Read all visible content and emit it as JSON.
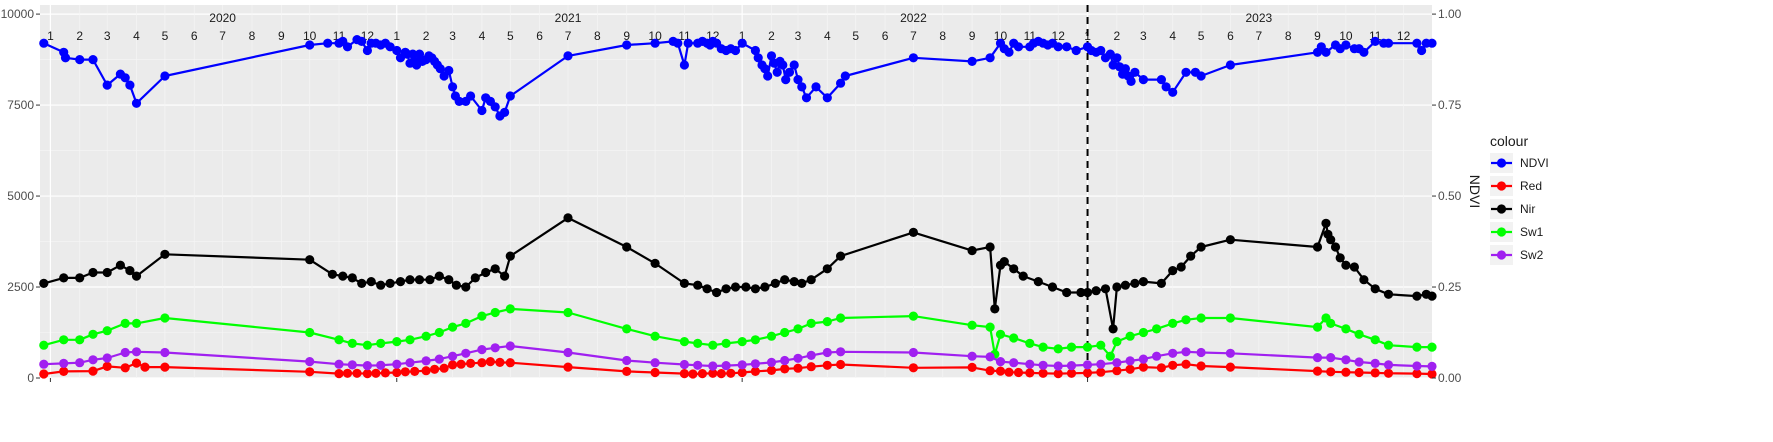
{
  "chart_data": {
    "type": "line",
    "xlabel": "",
    "ylabel_left": "",
    "ylabel_right": "NDVI",
    "x_range": [
      "2019-12-21",
      "2023-12-31"
    ],
    "y_left_range": [
      0,
      10250
    ],
    "y_left_ticks": [
      0,
      2500,
      5000,
      7500,
      10000
    ],
    "y_left_tick_labels": [
      "0",
      "2500",
      "5000",
      "7500",
      "10000"
    ],
    "y_right_ticks": [
      0,
      0.25,
      0.5,
      0.75,
      1.0
    ],
    "y_right_tick_labels": [
      "0.00",
      "0.25",
      "0.50",
      "0.75",
      "1.00"
    ],
    "right_axis_scale": 10000,
    "x_ticks": [
      "2020-01-01",
      "2021-01-01",
      "2022-01-01",
      "2023-01-01"
    ],
    "reference_line_x": "2023-01-01",
    "grid": true,
    "legend": {
      "title": "colour",
      "position": "right",
      "entries": [
        "NDVI",
        "Red",
        "Nir",
        "Sw1",
        "Sw2"
      ]
    },
    "year_labels": [
      {
        "label": "2020",
        "date": "2020-07-01"
      },
      {
        "label": "2021",
        "date": "2021-07-01"
      },
      {
        "label": "2022",
        "date": "2022-07-01"
      },
      {
        "label": "2023",
        "date": "2023-07-01"
      }
    ],
    "month_labels": [
      "1",
      "2",
      "3",
      "4",
      "5",
      "6",
      "7",
      "8",
      "9",
      "10",
      "11",
      "12"
    ],
    "series": [
      {
        "name": "NDVI",
        "axis": "right",
        "color": "#0000ff",
        "x": [
          "2019-12-25",
          "2020-01-15",
          "2020-01-17",
          "2020-02-01",
          "2020-02-15",
          "2020-03-01",
          "2020-03-15",
          "2020-03-20",
          "2020-03-25",
          "2020-04-01",
          "2020-05-01",
          "2020-10-01",
          "2020-10-20",
          "2020-11-01",
          "2020-11-05",
          "2020-11-10",
          "2020-11-20",
          "2020-11-25",
          "2020-12-01",
          "2020-12-05",
          "2020-12-10",
          "2020-12-15",
          "2020-12-20",
          "2020-12-25",
          "2021-01-01",
          "2021-01-05",
          "2021-01-10",
          "2021-01-12",
          "2021-01-15",
          "2021-01-18",
          "2021-01-20",
          "2021-01-22",
          "2021-01-25",
          "2021-01-28",
          "2021-02-01",
          "2021-02-04",
          "2021-02-07",
          "2021-02-10",
          "2021-02-13",
          "2021-02-16",
          "2021-02-20",
          "2021-02-25",
          "2021-03-01",
          "2021-03-04",
          "2021-03-08",
          "2021-03-15",
          "2021-03-20",
          "2021-04-01",
          "2021-04-05",
          "2021-04-10",
          "2021-04-15",
          "2021-04-20",
          "2021-04-25",
          "2021-05-01",
          "2021-07-01",
          "2021-09-01",
          "2021-10-01",
          "2021-10-20",
          "2021-10-25",
          "2021-11-01",
          "2021-11-05",
          "2021-11-15",
          "2021-11-20",
          "2021-11-25",
          "2021-11-28",
          "2021-12-01",
          "2021-12-05",
          "2021-12-10",
          "2021-12-15",
          "2021-12-20",
          "2021-12-25",
          "2022-01-01",
          "2022-01-15",
          "2022-01-18",
          "2022-01-22",
          "2022-01-25",
          "2022-01-28",
          "2022-02-01",
          "2022-02-04",
          "2022-02-07",
          "2022-02-10",
          "2022-02-13",
          "2022-02-16",
          "2022-02-20",
          "2022-02-25",
          "2022-03-01",
          "2022-03-05",
          "2022-03-10",
          "2022-03-20",
          "2022-04-01",
          "2022-04-15",
          "2022-04-20",
          "2022-07-01",
          "2022-09-01",
          "2022-09-20",
          "2022-10-01",
          "2022-10-05",
          "2022-10-10",
          "2022-10-15",
          "2022-10-20",
          "2022-11-01",
          "2022-11-05",
          "2022-11-10",
          "2022-11-15",
          "2022-11-20",
          "2022-11-25",
          "2022-12-01",
          "2022-12-10",
          "2022-12-20",
          "2023-01-01",
          "2023-01-05",
          "2023-01-10",
          "2023-01-15",
          "2023-01-20",
          "2023-01-25",
          "2023-01-28",
          "2023-02-01",
          "2023-02-04",
          "2023-02-07",
          "2023-02-10",
          "2023-02-13",
          "2023-02-16",
          "2023-02-20",
          "2023-03-01",
          "2023-03-20",
          "2023-03-25",
          "2023-04-01",
          "2023-04-15",
          "2023-04-25",
          "2023-05-01",
          "2023-06-01",
          "2023-09-01",
          "2023-09-05",
          "2023-09-10",
          "2023-09-20",
          "2023-09-25",
          "2023-10-01",
          "2023-10-10",
          "2023-10-15",
          "2023-10-20",
          "2023-11-01",
          "2023-11-10",
          "2023-11-15",
          "2023-12-15",
          "2023-12-20",
          "2023-12-25",
          "2023-12-31"
        ],
        "y": [
          0.92,
          0.895,
          0.88,
          0.875,
          0.875,
          0.805,
          0.835,
          0.825,
          0.805,
          0.755,
          0.83,
          0.915,
          0.92,
          0.92,
          0.925,
          0.91,
          0.93,
          0.925,
          0.9,
          0.92,
          0.92,
          0.915,
          0.92,
          0.91,
          0.9,
          0.88,
          0.895,
          0.89,
          0.865,
          0.89,
          0.87,
          0.86,
          0.89,
          0.87,
          0.875,
          0.885,
          0.88,
          0.87,
          0.86,
          0.85,
          0.83,
          0.845,
          0.8,
          0.775,
          0.76,
          0.76,
          0.775,
          0.735,
          0.77,
          0.76,
          0.745,
          0.72,
          0.73,
          0.775,
          0.885,
          0.915,
          0.92,
          0.925,
          0.92,
          0.86,
          0.92,
          0.92,
          0.925,
          0.92,
          0.915,
          0.925,
          0.92,
          0.905,
          0.9,
          0.905,
          0.9,
          0.92,
          0.9,
          0.88,
          0.86,
          0.85,
          0.83,
          0.885,
          0.865,
          0.84,
          0.87,
          0.86,
          0.82,
          0.84,
          0.86,
          0.82,
          0.8,
          0.77,
          0.8,
          0.77,
          0.81,
          0.83,
          0.88,
          0.87,
          0.88,
          0.92,
          0.905,
          0.895,
          0.92,
          0.91,
          0.91,
          0.92,
          0.925,
          0.92,
          0.915,
          0.92,
          0.91,
          0.91,
          0.9,
          0.91,
          0.9,
          0.895,
          0.9,
          0.88,
          0.89,
          0.86,
          0.88,
          0.855,
          0.835,
          0.85,
          0.83,
          0.815,
          0.84,
          0.82,
          0.82,
          0.8,
          0.785,
          0.84,
          0.84,
          0.83,
          0.86,
          0.895,
          0.91,
          0.895,
          0.915,
          0.905,
          0.915,
          0.905,
          0.905,
          0.895,
          0.925,
          0.92,
          0.92,
          0.92,
          0.9,
          0.92,
          0.92
        ]
      },
      {
        "name": "Red",
        "axis": "left",
        "color": "#ff0000",
        "x": [
          "2019-12-25",
          "2020-01-15",
          "2020-02-15",
          "2020-03-01",
          "2020-03-20",
          "2020-04-01",
          "2020-04-10",
          "2020-05-01",
          "2020-10-01",
          "2020-11-01",
          "2020-11-10",
          "2020-11-20",
          "2020-12-01",
          "2020-12-10",
          "2020-12-20",
          "2021-01-01",
          "2021-01-10",
          "2021-01-20",
          "2021-02-01",
          "2021-02-10",
          "2021-02-20",
          "2021-03-01",
          "2021-03-10",
          "2021-03-20",
          "2021-04-01",
          "2021-04-10",
          "2021-04-20",
          "2021-05-01",
          "2021-07-01",
          "2021-09-01",
          "2021-10-01",
          "2021-11-01",
          "2021-11-10",
          "2021-11-20",
          "2021-12-01",
          "2021-12-10",
          "2021-12-20",
          "2022-01-01",
          "2022-01-15",
          "2022-02-01",
          "2022-02-15",
          "2022-03-01",
          "2022-03-15",
          "2022-04-01",
          "2022-04-15",
          "2022-07-01",
          "2022-09-01",
          "2022-09-20",
          "2022-10-01",
          "2022-10-10",
          "2022-10-20",
          "2022-11-01",
          "2022-11-15",
          "2022-12-01",
          "2022-12-15",
          "2023-01-01",
          "2023-01-15",
          "2023-02-01",
          "2023-02-15",
          "2023-03-01",
          "2023-03-20",
          "2023-04-01",
          "2023-04-15",
          "2023-05-01",
          "2023-06-01",
          "2023-09-01",
          "2023-09-15",
          "2023-10-01",
          "2023-10-15",
          "2023-11-01",
          "2023-11-15",
          "2023-12-15",
          "2023-12-31"
        ],
        "y": [
          110,
          180,
          190,
          320,
          280,
          410,
          300,
          300,
          170,
          120,
          130,
          130,
          120,
          130,
          140,
          150,
          170,
          180,
          200,
          240,
          270,
          360,
          380,
          400,
          420,
          450,
          430,
          420,
          300,
          180,
          150,
          120,
          110,
          120,
          130,
          120,
          130,
          150,
          180,
          210,
          250,
          270,
          310,
          350,
          370,
          280,
          290,
          200,
          190,
          160,
          150,
          140,
          130,
          120,
          130,
          140,
          160,
          200,
          240,
          300,
          280,
          350,
          380,
          330,
          300,
          190,
          170,
          160,
          150,
          140,
          130,
          120,
          110
        ]
      },
      {
        "name": "Nir",
        "axis": "left",
        "color": "#000000",
        "x": [
          "2019-12-25",
          "2020-01-15",
          "2020-02-01",
          "2020-02-15",
          "2020-03-01",
          "2020-03-15",
          "2020-03-25",
          "2020-04-01",
          "2020-05-01",
          "2020-10-01",
          "2020-10-25",
          "2020-11-05",
          "2020-11-15",
          "2020-11-25",
          "2020-12-05",
          "2020-12-15",
          "2020-12-25",
          "2021-01-05",
          "2021-01-15",
          "2021-01-25",
          "2021-02-05",
          "2021-02-15",
          "2021-02-25",
          "2021-03-05",
          "2021-03-15",
          "2021-03-25",
          "2021-04-05",
          "2021-04-15",
          "2021-04-25",
          "2021-05-01",
          "2021-07-01",
          "2021-09-01",
          "2021-10-01",
          "2021-11-01",
          "2021-11-15",
          "2021-11-25",
          "2021-12-05",
          "2021-12-15",
          "2021-12-25",
          "2022-01-05",
          "2022-01-15",
          "2022-01-25",
          "2022-02-05",
          "2022-02-15",
          "2022-02-25",
          "2022-03-05",
          "2022-03-15",
          "2022-04-01",
          "2022-04-15",
          "2022-07-01",
          "2022-09-01",
          "2022-09-20",
          "2022-09-25",
          "2022-10-01",
          "2022-10-05",
          "2022-10-15",
          "2022-10-25",
          "2022-11-10",
          "2022-11-25",
          "2022-12-10",
          "2022-12-25",
          "2023-01-01",
          "2023-01-10",
          "2023-01-20",
          "2023-01-28",
          "2023-02-01",
          "2023-02-10",
          "2023-02-20",
          "2023-03-01",
          "2023-03-20",
          "2023-04-01",
          "2023-04-10",
          "2023-04-20",
          "2023-05-01",
          "2023-06-01",
          "2023-09-01",
          "2023-09-10",
          "2023-09-12",
          "2023-09-15",
          "2023-09-20",
          "2023-09-25",
          "2023-10-01",
          "2023-10-10",
          "2023-10-20",
          "2023-11-01",
          "2023-11-15",
          "2023-12-15",
          "2023-12-25",
          "2023-12-31"
        ],
        "y": [
          2600,
          2750,
          2750,
          2900,
          2900,
          3100,
          2950,
          2800,
          3400,
          3250,
          2850,
          2800,
          2750,
          2600,
          2650,
          2550,
          2600,
          2650,
          2700,
          2700,
          2700,
          2800,
          2700,
          2550,
          2500,
          2750,
          2900,
          3000,
          2800,
          3350,
          4400,
          3600,
          3150,
          2600,
          2550,
          2450,
          2350,
          2450,
          2500,
          2500,
          2450,
          2500,
          2600,
          2700,
          2650,
          2600,
          2700,
          3000,
          3350,
          4000,
          3500,
          3600,
          1900,
          3100,
          3200,
          3000,
          2800,
          2650,
          2500,
          2350,
          2350,
          2350,
          2400,
          2450,
          1350,
          2500,
          2550,
          2600,
          2650,
          2600,
          2950,
          3050,
          3350,
          3600,
          3800,
          3600,
          4250,
          3950,
          3800,
          3600,
          3300,
          3100,
          3050,
          2700,
          2450,
          2300,
          2250,
          2300,
          2250
        ]
      },
      {
        "name": "Sw1",
        "axis": "left",
        "color": "#00ff00",
        "x": [
          "2019-12-25",
          "2020-01-15",
          "2020-02-01",
          "2020-02-15",
          "2020-03-01",
          "2020-03-20",
          "2020-04-01",
          "2020-05-01",
          "2020-10-01",
          "2020-11-01",
          "2020-11-15",
          "2020-12-01",
          "2020-12-15",
          "2021-01-01",
          "2021-01-15",
          "2021-02-01",
          "2021-02-15",
          "2021-03-01",
          "2021-03-15",
          "2021-04-01",
          "2021-04-15",
          "2021-05-01",
          "2021-07-01",
          "2021-09-01",
          "2021-10-01",
          "2021-11-01",
          "2021-11-15",
          "2021-12-01",
          "2021-12-15",
          "2022-01-01",
          "2022-01-15",
          "2022-02-01",
          "2022-02-15",
          "2022-03-01",
          "2022-03-15",
          "2022-04-01",
          "2022-04-15",
          "2022-07-01",
          "2022-09-01",
          "2022-09-20",
          "2022-09-25",
          "2022-10-01",
          "2022-10-15",
          "2022-11-01",
          "2022-11-15",
          "2022-12-01",
          "2022-12-15",
          "2023-01-01",
          "2023-01-15",
          "2023-01-25",
          "2023-02-01",
          "2023-02-15",
          "2023-03-01",
          "2023-03-15",
          "2023-04-01",
          "2023-04-15",
          "2023-05-01",
          "2023-06-01",
          "2023-09-01",
          "2023-09-10",
          "2023-09-15",
          "2023-10-01",
          "2023-10-15",
          "2023-11-01",
          "2023-11-15",
          "2023-12-15",
          "2023-12-31"
        ],
        "y": [
          900,
          1050,
          1050,
          1200,
          1300,
          1500,
          1500,
          1650,
          1250,
          1050,
          950,
          900,
          950,
          1000,
          1050,
          1150,
          1250,
          1400,
          1500,
          1700,
          1800,
          1900,
          1800,
          1350,
          1150,
          1000,
          950,
          900,
          950,
          1000,
          1050,
          1150,
          1250,
          1350,
          1500,
          1550,
          1650,
          1700,
          1450,
          1400,
          650,
          1200,
          1100,
          950,
          850,
          800,
          850,
          850,
          900,
          600,
          1000,
          1150,
          1250,
          1350,
          1500,
          1600,
          1650,
          1650,
          1400,
          1650,
          1500,
          1350,
          1200,
          1050,
          900,
          850,
          850
        ]
      },
      {
        "name": "Sw2",
        "axis": "left",
        "color": "#a020f0",
        "x": [
          "2019-12-25",
          "2020-01-15",
          "2020-02-01",
          "2020-02-15",
          "2020-03-01",
          "2020-03-20",
          "2020-04-01",
          "2020-05-01",
          "2020-10-01",
          "2020-11-01",
          "2020-11-15",
          "2020-12-01",
          "2020-12-15",
          "2021-01-01",
          "2021-01-15",
          "2021-02-01",
          "2021-02-15",
          "2021-03-01",
          "2021-03-15",
          "2021-04-01",
          "2021-04-15",
          "2021-05-01",
          "2021-07-01",
          "2021-09-01",
          "2021-10-01",
          "2021-11-01",
          "2021-11-15",
          "2021-12-01",
          "2021-12-15",
          "2022-01-01",
          "2022-01-15",
          "2022-02-01",
          "2022-02-15",
          "2022-03-01",
          "2022-03-15",
          "2022-04-01",
          "2022-04-15",
          "2022-07-01",
          "2022-09-01",
          "2022-09-20",
          "2022-10-01",
          "2022-10-15",
          "2022-11-01",
          "2022-11-15",
          "2022-12-01",
          "2022-12-15",
          "2023-01-01",
          "2023-01-15",
          "2023-02-01",
          "2023-02-15",
          "2023-03-01",
          "2023-03-15",
          "2023-04-01",
          "2023-04-15",
          "2023-05-01",
          "2023-06-01",
          "2023-09-01",
          "2023-09-15",
          "2023-10-01",
          "2023-10-15",
          "2023-11-01",
          "2023-11-15",
          "2023-12-15",
          "2023-12-31"
        ],
        "y": [
          380,
          400,
          420,
          500,
          550,
          700,
          720,
          700,
          450,
          380,
          360,
          340,
          350,
          380,
          420,
          470,
          520,
          600,
          680,
          780,
          830,
          880,
          700,
          480,
          420,
          370,
          350,
          330,
          340,
          360,
          390,
          430,
          480,
          540,
          620,
          700,
          720,
          700,
          600,
          580,
          450,
          420,
          380,
          350,
          330,
          340,
          360,
          380,
          420,
          470,
          520,
          600,
          680,
          720,
          700,
          680,
          560,
          560,
          500,
          440,
          400,
          360,
          330,
          320
        ]
      }
    ]
  }
}
